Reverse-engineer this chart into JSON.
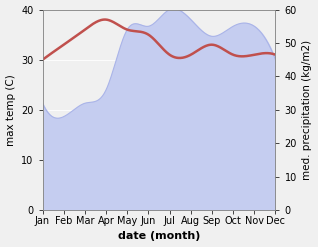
{
  "months": [
    "Jan",
    "Feb",
    "Mar",
    "Apr",
    "May",
    "Jun",
    "Jul",
    "Aug",
    "Sep",
    "Oct",
    "Nov",
    "Dec"
  ],
  "x": [
    0,
    1,
    2,
    3,
    4,
    5,
    6,
    7,
    8,
    9,
    10,
    11
  ],
  "temperature": [
    30,
    33,
    36,
    38,
    36,
    35,
    31,
    31,
    33,
    31,
    31,
    31
  ],
  "precipitation_mm": [
    32,
    28,
    32,
    36,
    54,
    55,
    60,
    57,
    52,
    55,
    55,
    45
  ],
  "temp_color": "#c0504d",
  "precip_fill_color": "#c5cdf0",
  "precip_line_color": "#aab4e8",
  "background_color": "#f0f0f0",
  "ylabel_left": "max temp (C)",
  "ylabel_right": "med. precipitation (kg/m2)",
  "xlabel": "date (month)",
  "ylim_left": [
    0,
    40
  ],
  "ylim_right": [
    0,
    60
  ],
  "yticks_left": [
    0,
    10,
    20,
    30,
    40
  ],
  "yticks_right": [
    0,
    10,
    20,
    30,
    40,
    50,
    60
  ],
  "temp_linewidth": 1.8,
  "xlabel_fontsize": 8,
  "ylabel_fontsize": 7.5,
  "tick_fontsize": 7
}
